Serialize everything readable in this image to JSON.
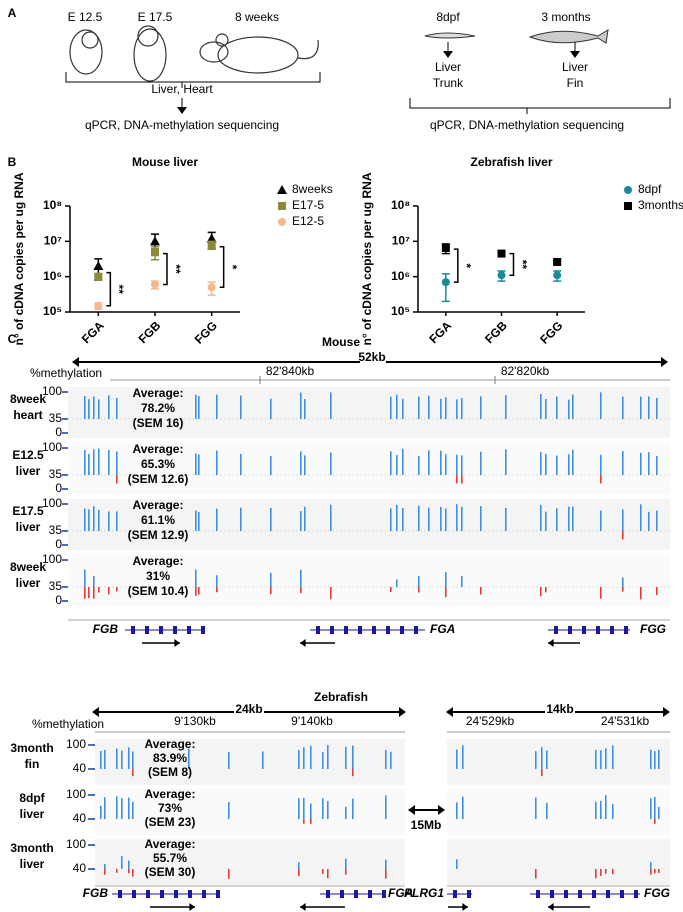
{
  "panel_a": {
    "label": "A",
    "mouse_stages": [
      "E 12.5",
      "E 17.5",
      "8 weeks"
    ],
    "mouse_tissues": "Liver, Heart",
    "mouse_methods": "qPCR, DNA-methylation sequencing",
    "fish_stages": [
      "8dpf",
      "3 months"
    ],
    "fish_tissues": [
      [
        "Liver",
        "Trunk"
      ],
      [
        "Liver",
        "Fin"
      ]
    ],
    "fish_methods": "qPCR, DNA-methylation sequencing"
  },
  "panel_b": {
    "label": "B"
  },
  "chart_data": [
    {
      "type": "scatter",
      "title": "Mouse liver",
      "y_label": "n° of cDNA copies per ug RNA",
      "categories": [
        "FGA",
        "FGB",
        "FGG"
      ],
      "log_scale": true,
      "ylim": [
        100000,
        100000000
      ],
      "yticks": [
        {
          "value": 100000,
          "label": "10⁵"
        },
        {
          "value": 1000000,
          "label": "10⁶"
        },
        {
          "value": 10000000,
          "label": "10⁷"
        },
        {
          "value": 100000000,
          "label": "10⁸"
        }
      ],
      "legend": "right",
      "series": [
        {
          "name": "8weeks",
          "color": "#000000",
          "marker": "triangle",
          "values": [
            2000000,
            10000000,
            12000000
          ],
          "errors": [
            1200000,
            6000000,
            6000000
          ]
        },
        {
          "name": "E17-5",
          "color": "#8c8a3a",
          "marker": "square",
          "values": [
            1000000,
            5000000,
            8000000
          ],
          "errors": [
            200000,
            2000000,
            2000000
          ]
        },
        {
          "name": "E12-5",
          "color": "#f4b88a",
          "marker": "circle",
          "values": [
            150000,
            600000,
            500000
          ],
          "errors": [
            30000,
            150000,
            200000
          ]
        }
      ],
      "annotations": [
        {
          "category": "FGA",
          "y1": 1300000,
          "y2": 150000,
          "label": "**"
        },
        {
          "category": "FGB",
          "y1": 4500000,
          "y2": 600000,
          "label": "**"
        },
        {
          "category": "FGG",
          "y1": 7000000,
          "y2": 500000,
          "label": "*"
        }
      ]
    },
    {
      "type": "scatter",
      "title": "Zebrafish liver",
      "y_label": "n° of cDNA copies per ug RNA",
      "categories": [
        "FGA",
        "FGB",
        "FGG"
      ],
      "log_scale": true,
      "ylim": [
        100000,
        100000000
      ],
      "yticks": [
        {
          "value": 100000,
          "label": "10⁵"
        },
        {
          "value": 1000000,
          "label": "10⁶"
        },
        {
          "value": 10000000,
          "label": "10⁷"
        },
        {
          "value": 100000000,
          "label": "10⁸"
        }
      ],
      "legend": "right",
      "series": [
        {
          "name": "8dpf",
          "color": "#1a8a98",
          "marker": "circle",
          "values": [
            700000,
            1100000,
            1100000
          ],
          "errors": [
            500000,
            350000,
            350000
          ]
        },
        {
          "name": "3months",
          "color": "#000000",
          "marker": "square",
          "values": [
            6500000,
            4500000,
            2600000
          ],
          "errors": [
            2000000,
            400000,
            300000
          ]
        }
      ],
      "annotations": [
        {
          "category": "FGA",
          "y1": 6000000,
          "y2": 700000,
          "label": "*"
        },
        {
          "category": "FGB",
          "y1": 4500000,
          "y2": 1100000,
          "label": "**"
        }
      ]
    }
  ],
  "panel_c": {
    "label": "C",
    "mouse": {
      "title": "Mouse",
      "span": "52kb",
      "track_unit": "%methylation",
      "coords": [
        "82'840kb",
        "82'820kb"
      ],
      "tracks": [
        {
          "name": [
            "8week",
            "heart"
          ],
          "scale": [
            100,
            35,
            0
          ],
          "average": [
            "Average:",
            "78.2%",
            "(SEM 16)"
          ]
        },
        {
          "name": [
            "E12.5",
            "liver"
          ],
          "scale": [
            100,
            35,
            0
          ],
          "average": [
            "Average:",
            "65.3%",
            "(SEM 12.6)"
          ]
        },
        {
          "name": [
            "E17.5",
            "liver"
          ],
          "scale": [
            100,
            35,
            0
          ],
          "average": [
            "Average:",
            "61.1%",
            "(SEM 12.9)"
          ]
        },
        {
          "name": [
            "8week",
            "liver"
          ],
          "scale": [
            100,
            35,
            0
          ],
          "average": [
            "Average:",
            "31%",
            "(SEM 10.4)"
          ]
        }
      ],
      "genes": [
        "FGB",
        "FGA",
        "FGG"
      ]
    },
    "zebrafish": {
      "title": "Zebrafish",
      "spans": [
        "24kb",
        "14kb"
      ],
      "track_unit": "%methylation",
      "coords": [
        "9'130kb",
        "9'140kb",
        "24'529kb",
        "24'531kb"
      ],
      "gap": "15Mb",
      "tracks": [
        {
          "name": [
            "3month",
            "fin"
          ],
          "scale": [
            100,
            40
          ],
          "average": [
            "Average:",
            "83.9%",
            "(SEM 8)"
          ]
        },
        {
          "name": [
            "8dpf",
            "liver"
          ],
          "scale": [
            100,
            40
          ],
          "average": [
            "Average:",
            "73%",
            "(SEM 23)"
          ]
        },
        {
          "name": [
            "3month",
            "liver"
          ],
          "scale": [
            100,
            40
          ],
          "average": [
            "Average:",
            "55.7%",
            "(SEM 30)"
          ]
        }
      ],
      "genes": [
        "FGB",
        "FGA",
        "PLRG1",
        "FGG"
      ]
    }
  }
}
